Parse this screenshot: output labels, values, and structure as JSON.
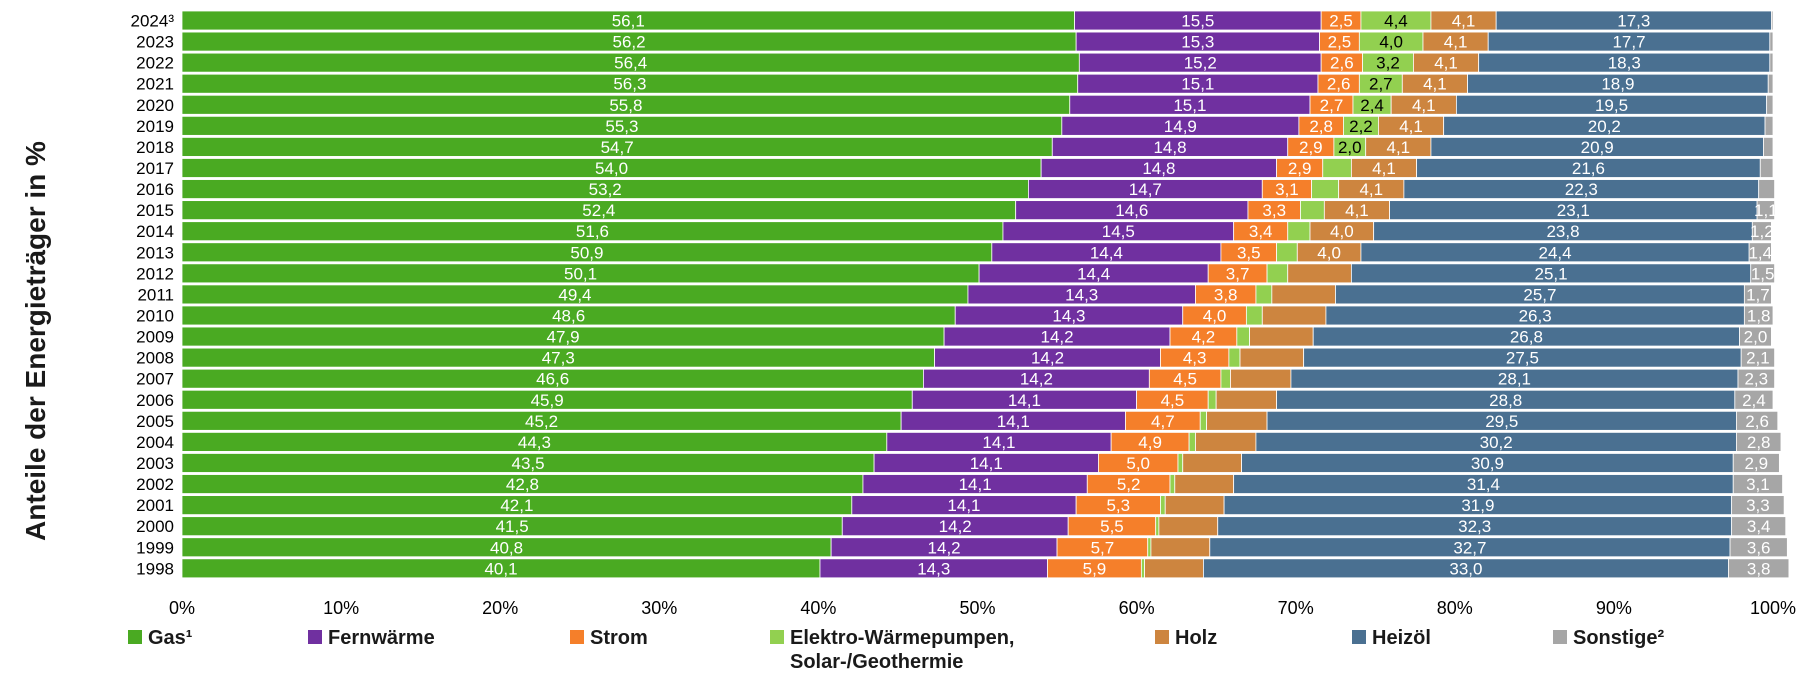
{
  "chart_data": {
    "type": "bar",
    "orientation": "horizontal",
    "stacked": true,
    "ylabel": "Anteile der Energieträger in %",
    "xlim": [
      0,
      100
    ],
    "xticks": [
      "0%",
      "10%",
      "20%",
      "30%",
      "40%",
      "50%",
      "60%",
      "70%",
      "80%",
      "90%",
      "100%"
    ],
    "categories": [
      "2024³",
      "2023",
      "2022",
      "2021",
      "2020",
      "2019",
      "2018",
      "2017",
      "2016",
      "2015",
      "2014",
      "2013",
      "2012",
      "2011",
      "2010",
      "2009",
      "2008",
      "2007",
      "2006",
      "2005",
      "2004",
      "2003",
      "2002",
      "2001",
      "2000",
      "1999",
      "1998"
    ],
    "series": [
      {
        "name": "Gas¹",
        "color": "#4aaa22",
        "text_color": "#ffffff",
        "values": [
          56.1,
          56.2,
          56.4,
          56.3,
          55.8,
          55.3,
          54.7,
          54.0,
          53.2,
          52.4,
          51.6,
          50.9,
          50.1,
          49.4,
          48.6,
          47.9,
          47.3,
          46.6,
          45.9,
          45.2,
          44.3,
          43.5,
          42.8,
          42.1,
          41.5,
          40.8,
          40.1
        ],
        "labels": [
          "56,1",
          "56,2",
          "56,4",
          "56,3",
          "55,8",
          "55,3",
          "54,7",
          "54,0",
          "53,2",
          "52,4",
          "51,6",
          "50,9",
          "50,1",
          "49,4",
          "48,6",
          "47,9",
          "47,3",
          "46,6",
          "45,9",
          "45,2",
          "44,3",
          "43,5",
          "42,8",
          "42,1",
          "41,5",
          "40,8",
          "40,1"
        ]
      },
      {
        "name": "Fernwärme",
        "color": "#7030a0",
        "text_color": "#ffffff",
        "values": [
          15.5,
          15.3,
          15.2,
          15.1,
          15.1,
          14.9,
          14.8,
          14.8,
          14.7,
          14.6,
          14.5,
          14.4,
          14.4,
          14.3,
          14.3,
          14.2,
          14.2,
          14.2,
          14.1,
          14.1,
          14.1,
          14.1,
          14.1,
          14.1,
          14.2,
          14.2,
          14.3
        ],
        "labels": [
          "15,5",
          "15,3",
          "15,2",
          "15,1",
          "15,1",
          "14,9",
          "14,8",
          "14,8",
          "14,7",
          "14,6",
          "14,5",
          "14,4",
          "14,4",
          "14,3",
          "14,3",
          "14,2",
          "14,2",
          "14,2",
          "14,1",
          "14,1",
          "14,1",
          "14,1",
          "14,1",
          "14,1",
          "14,2",
          "14,2",
          "14,3"
        ]
      },
      {
        "name": "Strom",
        "color": "#f57f2a",
        "text_color": "#ffffff",
        "values": [
          2.5,
          2.5,
          2.6,
          2.6,
          2.7,
          2.8,
          2.9,
          2.9,
          3.1,
          3.3,
          3.4,
          3.5,
          3.7,
          3.8,
          4.0,
          4.2,
          4.3,
          4.5,
          4.5,
          4.7,
          4.9,
          5.0,
          5.2,
          5.3,
          5.5,
          5.7,
          5.9
        ],
        "labels": [
          "2,5",
          "2,5",
          "2,6",
          "2,6",
          "2,7",
          "2,8",
          "2,9",
          "2,9",
          "3,1",
          "3,3",
          "3,4",
          "3,5",
          "3,7",
          "3,8",
          "4,0",
          "4,2",
          "4,3",
          "4,5",
          "4,5",
          "4,7",
          "4,9",
          "5,0",
          "5,2",
          "5,3",
          "5,5",
          "5,7",
          "5,9"
        ]
      },
      {
        "name": "Elektro-Wärmepumpen, Solar-/Geothermie",
        "color": "#92d050",
        "text_color": "#000000",
        "values": [
          4.4,
          4.0,
          3.2,
          2.7,
          2.4,
          2.2,
          2.0,
          1.8,
          1.7,
          1.5,
          1.4,
          1.3,
          1.3,
          1.0,
          1.0,
          0.8,
          0.7,
          0.6,
          0.5,
          0.4,
          0.4,
          0.3,
          0.3,
          0.3,
          0.2,
          0.2,
          0.2
        ],
        "labels": [
          "4,4",
          "4,0",
          "3,2",
          "2,7",
          "2,4",
          "2,2",
          "2,0",
          "",
          "",
          "",
          "",
          "",
          "",
          "",
          "",
          "",
          "",
          "",
          "",
          "",
          "",
          "",
          "",
          "",
          "",
          "",
          ""
        ]
      },
      {
        "name": "Holz",
        "color": "#cd853f",
        "text_color": "#ffffff",
        "values": [
          4.1,
          4.1,
          4.1,
          4.1,
          4.1,
          4.1,
          4.1,
          4.1,
          4.1,
          4.1,
          4.0,
          4.0,
          4.0,
          4.0,
          4.0,
          4.0,
          4.0,
          3.8,
          3.8,
          3.8,
          3.8,
          3.7,
          3.7,
          3.7,
          3.7,
          3.7,
          3.7
        ],
        "labels": [
          "4,1",
          "4,1",
          "4,1",
          "4,1",
          "4,1",
          "4,1",
          "4,1",
          "4,1",
          "4,1",
          "4,1",
          "4,0",
          "4,0",
          "",
          "",
          "",
          "",
          "",
          "",
          "",
          "",
          "",
          "",
          "",
          "",
          "",
          "",
          ""
        ]
      },
      {
        "name": "Heizöl",
        "color": "#4a7091",
        "text_color": "#ffffff",
        "values": [
          17.3,
          17.7,
          18.3,
          18.9,
          19.5,
          20.2,
          20.9,
          21.6,
          22.3,
          23.1,
          23.8,
          24.4,
          25.1,
          25.7,
          26.3,
          26.8,
          27.5,
          28.1,
          28.8,
          29.5,
          30.2,
          30.9,
          31.4,
          31.9,
          32.3,
          32.7,
          33.0
        ],
        "labels": [
          "17,3",
          "17,7",
          "18,3",
          "18,9",
          "19,5",
          "20,2",
          "20,9",
          "21,6",
          "22,3",
          "23,1",
          "23,8",
          "24,4",
          "25,1",
          "25,7",
          "26,3",
          "26,8",
          "27,5",
          "28,1",
          "28,8",
          "29,5",
          "30,2",
          "30,9",
          "31,4",
          "31,9",
          "32,3",
          "32,7",
          "33,0"
        ]
      },
      {
        "name": "Sonstige²",
        "color": "#a6a6a6",
        "text_color": "#ffffff",
        "values": [
          0.1,
          0.2,
          0.2,
          0.3,
          0.4,
          0.5,
          0.6,
          0.8,
          1.0,
          1.1,
          1.2,
          1.4,
          1.5,
          1.7,
          1.8,
          2.0,
          2.1,
          2.3,
          2.4,
          2.6,
          2.8,
          2.9,
          3.1,
          3.3,
          3.4,
          3.6,
          3.8
        ],
        "labels": [
          "",
          "",
          "",
          "",
          "",
          "",
          "",
          "",
          "",
          "1,1",
          "1,2",
          "1,4",
          "1,5",
          "1,7",
          "1,8",
          "2,0",
          "2,1",
          "2,3",
          "2,4",
          "2,6",
          "2,8",
          "2,9",
          "3,1",
          "3,3",
          "3,4",
          "3,6",
          "3,8"
        ]
      }
    ],
    "legend": {
      "position": "bottom",
      "items": [
        {
          "label": "Gas¹",
          "color": "#4aaa22"
        },
        {
          "label": "Fernwärme",
          "color": "#7030a0"
        },
        {
          "label": "Strom",
          "color": "#f57f2a"
        },
        {
          "label": "Elektro-Wärmepumpen,",
          "label2": "Solar-/Geothermie",
          "color": "#92d050"
        },
        {
          "label": "Holz",
          "color": "#cd853f"
        },
        {
          "label": "Heizöl",
          "color": "#4a7091"
        },
        {
          "label": "Sonstige²",
          "color": "#a6a6a6"
        }
      ]
    },
    "grid": false
  }
}
